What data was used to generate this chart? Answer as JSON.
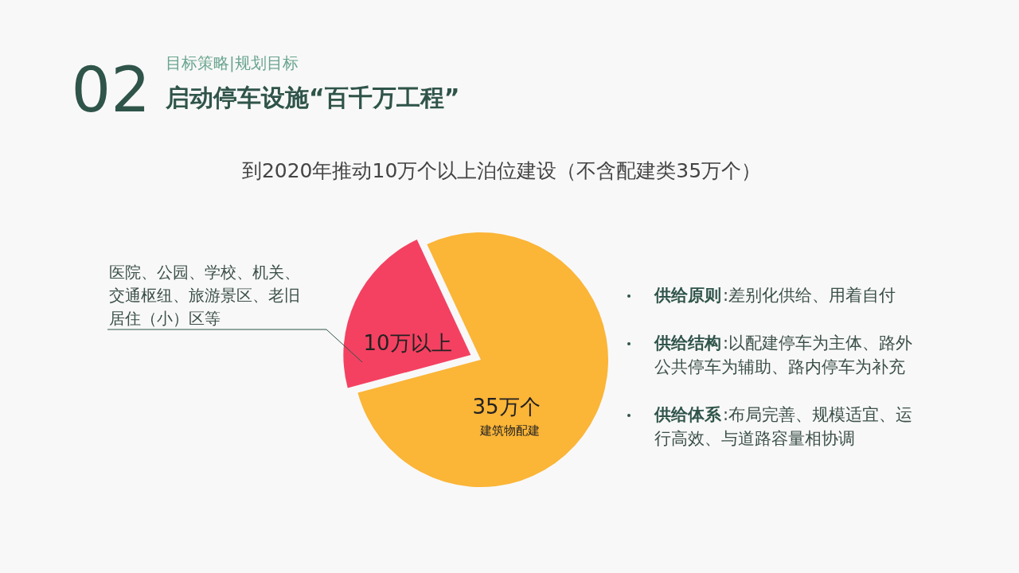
{
  "chart_data": {
    "type": "pie",
    "title": "启动停车设施“百千万工程”",
    "subtitle": "到2020年推动10万个以上泊位建设（不含配建类35万个）",
    "categories": [
      "医院、公园、学校、机关、交通枢纽、旅游景区、老旧居住（小）区等",
      "建筑物配建"
    ],
    "values": [
      10,
      35
    ],
    "value_labels": [
      "10万以上",
      "35万个"
    ],
    "colors": [
      "#f44161",
      "#fbb537"
    ],
    "annotations": [
      "02",
      "目标策略|规划目标",
      "供给原则:差别化供给、用着自付",
      "供给结构:以配建停车为主体、路外公共停车为辅助、路内停车为补充",
      "供给体系:布局完善、规模适宜、运行高效、与道路容量相协调"
    ]
  }
}
